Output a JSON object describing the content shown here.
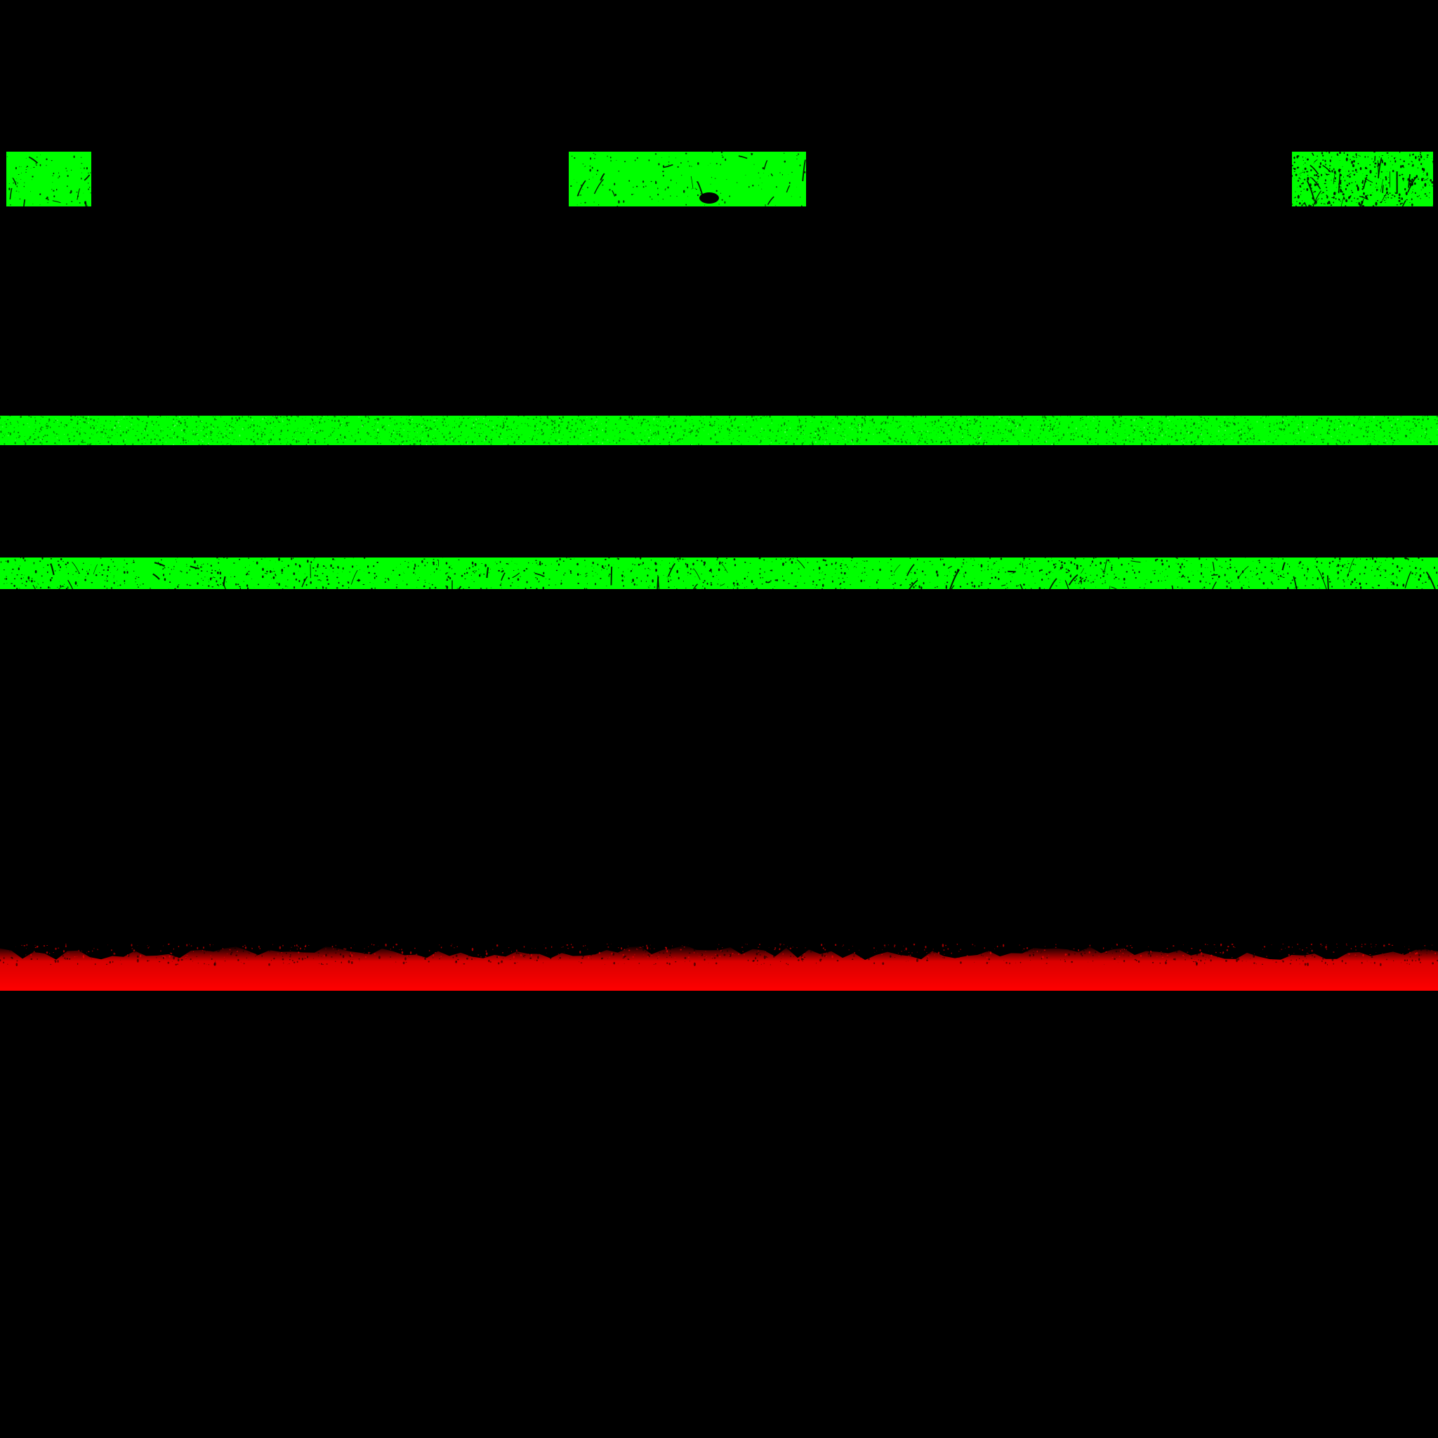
{
  "colors": {
    "background": "#000000",
    "green": "#00ff00",
    "red": "#ff0000"
  },
  "texture": {
    "name": "grunge-stripe-texture"
  }
}
